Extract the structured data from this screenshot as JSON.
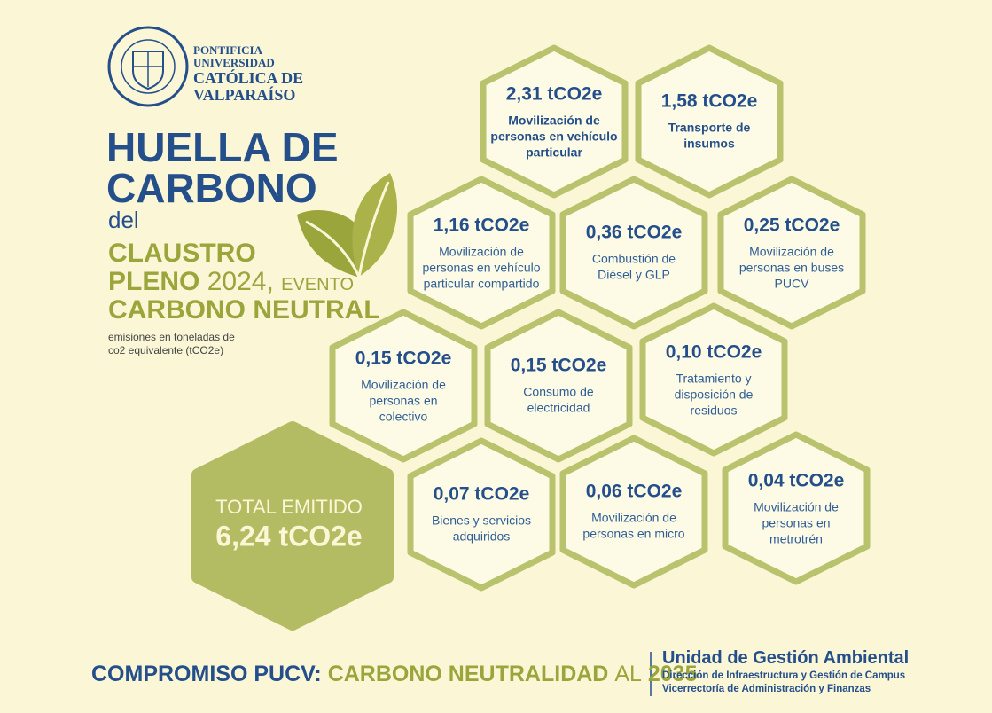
{
  "logo": {
    "lines": [
      "PONTIFICIA",
      "UNIVERSIDAD",
      "CATÓLICA DE",
      "VALPARAÍSO"
    ]
  },
  "title": {
    "line1": "HUELLA DE",
    "line2": "CARBONO",
    "connector": "del",
    "event1": "CLAUSTRO",
    "event2": "PLENO",
    "year": "2024,",
    "event3": "EVENTO",
    "event4": "CARBONO NEUTRAL"
  },
  "note": {
    "line1": "emisiones en toneladas de",
    "line2": "co2 equivalente (tCO2e)"
  },
  "items": [
    {
      "value": "2,31 tCO2e",
      "label": [
        "Movilización de",
        "personas en vehículo",
        "particular"
      ]
    },
    {
      "value": "1,58 tCO2e",
      "label": [
        "Transporte de",
        "insumos"
      ]
    },
    {
      "value": "1,16 tCO2e",
      "label": [
        "Movilización de",
        "personas en vehículo",
        "particular compartido"
      ]
    },
    {
      "value": "0,36 tCO2e",
      "label": [
        "Combustión de",
        "Diésel y GLP"
      ]
    },
    {
      "value": "0,25 tCO2e",
      "label": [
        "Movilización de",
        "personas en buses",
        "PUCV"
      ]
    },
    {
      "value": "0,15 tCO2e",
      "label": [
        "Movilización de",
        "personas en",
        "colectivo"
      ]
    },
    {
      "value": "0,15 tCO2e",
      "label": [
        "Consumo de",
        "electricidad"
      ]
    },
    {
      "value": "0,10 tCO2e",
      "label": [
        "Tratamiento y",
        "disposición de",
        "residuos"
      ]
    },
    {
      "value": "0,07 tCO2e",
      "label": [
        "Bienes y servicios",
        "adquiridos"
      ]
    },
    {
      "value": "0,06 tCO2e",
      "label": [
        "Movilización de",
        "personas en micro"
      ]
    },
    {
      "value": "0,04 tCO2e",
      "label": [
        "Movilización de",
        "personas en",
        "metrotrén"
      ]
    }
  ],
  "total": {
    "label": "TOTAL EMITIDO",
    "value": "6,24 tCO2e"
  },
  "footer": {
    "part1": "COMPROMISO PUCV:",
    "part2": "CARBONO NEUTRALIDAD",
    "part3": "AL",
    "part4": "2035",
    "unit": "Unidad de Gestión Ambiental",
    "dept1": "Dirección de Infraestructura y Gestión de Campus",
    "dept2": "Vicerrectoría de Administración y Finanzas"
  }
}
